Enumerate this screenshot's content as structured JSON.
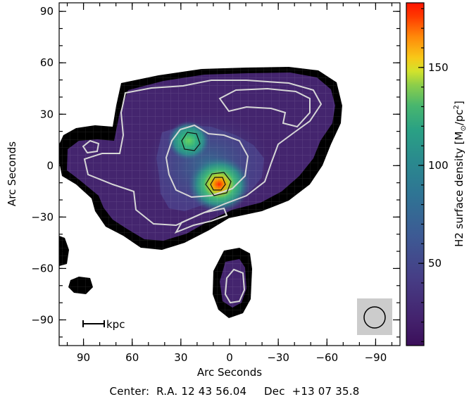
{
  "chart_data": {
    "type": "heatmap",
    "xlabel": "Arc Seconds",
    "ylabel": "Arc Seconds",
    "xlim": [
      105,
      -105
    ],
    "ylim": [
      -105,
      95
    ],
    "xticks": [
      90,
      60,
      30,
      0,
      -30,
      -60,
      -90
    ],
    "yticks": [
      90,
      60,
      30,
      0,
      -30,
      -60,
      -90
    ],
    "xtick_labels": [
      "90",
      "60",
      "30",
      "0",
      "−30",
      "−60",
      "−90"
    ],
    "ytick_labels": [
      "90",
      "60",
      "30",
      "0",
      "−30",
      "−60",
      "−90"
    ],
    "colorbar": {
      "label_main": "H2 surface density ",
      "label_unit": "[M",
      "label_sun": "⊙",
      "label_unit2": "/pc",
      "label_sup": "2",
      "label_close": "]",
      "range": [
        8,
        183
      ],
      "ticks": [
        50,
        100,
        150
      ],
      "tick_labels": [
        "50",
        "100",
        "150"
      ],
      "colormap": "viridis-like (purple-blue-green-yellow-red)"
    },
    "peaks": [
      {
        "x": -5,
        "y": -15,
        "value": 180
      },
      {
        "x": 20,
        "y": 0,
        "value": 100
      }
    ],
    "scale_bar_label": "kpc",
    "beam": "circle in grey box, lower right",
    "center_text": "Center:  R.A. 12 43 56.04     Dec  +13 07 35.8"
  },
  "colors": {
    "background_outside": "#000000",
    "map_low": "#45256e",
    "contour_light": "#d6d6d6",
    "beam_box": "#cccccc"
  }
}
